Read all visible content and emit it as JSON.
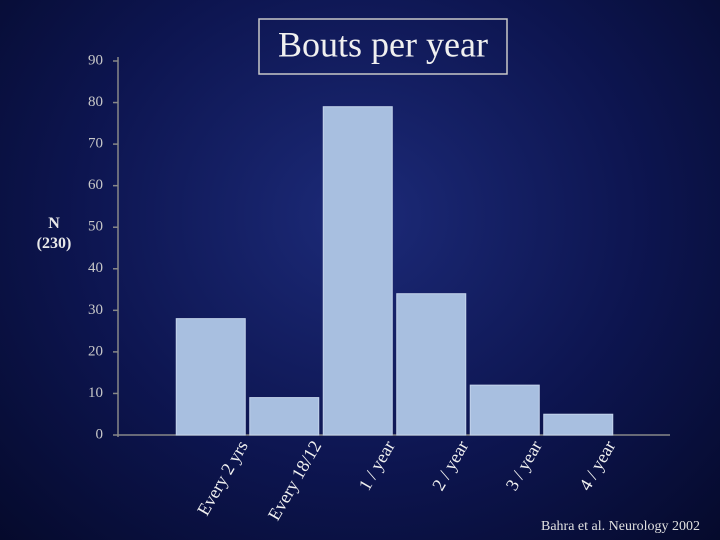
{
  "chart_data": {
    "type": "bar",
    "title": "Bouts per year",
    "ylabel": "N (230)",
    "categories": [
      "Every 2 yrs",
      "Every 18/12",
      "1 / year",
      "2 / year",
      "3 / year",
      "4 / year"
    ],
    "values": [
      28,
      9,
      79,
      34,
      12,
      5
    ],
    "color": "#a8bfe0",
    "ylim": [
      0,
      90
    ],
    "yticks": [
      0,
      10,
      20,
      30,
      40,
      50,
      60,
      70,
      80,
      90
    ],
    "source": "Bahra et al. Neurology 2002"
  }
}
